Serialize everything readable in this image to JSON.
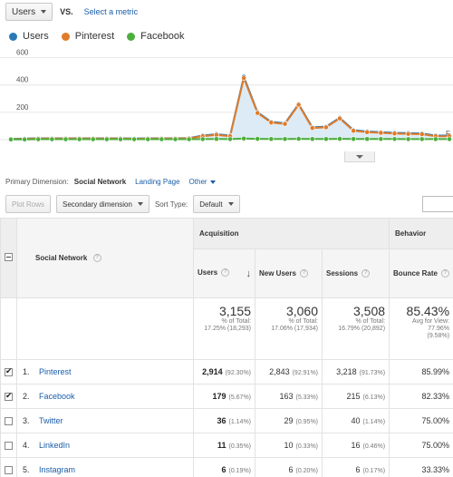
{
  "metric_row": {
    "metric": "Users",
    "vs": "VS.",
    "select_metric": "Select a metric"
  },
  "legend": [
    {
      "label": "Users",
      "color": "#2a7ab8"
    },
    {
      "label": "Pinterest",
      "color": "#e07b2a"
    },
    {
      "label": "Facebook",
      "color": "#4caf3c"
    }
  ],
  "chart_data": {
    "type": "line",
    "y_ticks": [
      "600",
      "400",
      "200"
    ],
    "ylim": [
      0,
      650
    ],
    "x_edge_label": "F",
    "series": [
      {
        "name": "Users",
        "color": "#2a7ab8",
        "values": [
          5,
          8,
          10,
          10,
          10,
          10,
          10,
          10,
          10,
          8,
          10,
          10,
          10,
          12,
          30,
          40,
          30,
          460,
          200,
          130,
          120,
          260,
          90,
          95,
          160,
          70,
          60,
          55,
          50,
          48,
          45,
          30,
          30
        ]
      },
      {
        "name": "Pinterest",
        "color": "#e07b2a",
        "values": [
          3,
          6,
          8,
          8,
          8,
          8,
          8,
          8,
          8,
          6,
          8,
          8,
          8,
          10,
          25,
          35,
          25,
          450,
          195,
          125,
          115,
          255,
          85,
          90,
          155,
          65,
          55,
          50,
          45,
          42,
          40,
          25,
          25
        ]
      },
      {
        "name": "Facebook",
        "color": "#4caf3c",
        "values": [
          2,
          2,
          3,
          3,
          3,
          3,
          3,
          3,
          3,
          3,
          3,
          3,
          3,
          3,
          4,
          5,
          4,
          8,
          6,
          5,
          5,
          6,
          5,
          5,
          6,
          5,
          5,
          5,
          5,
          4,
          4,
          4,
          4
        ]
      }
    ]
  },
  "primary_dimension": {
    "label": "Primary Dimension:",
    "active": "Social Network",
    "landing": "Landing Page",
    "other": "Other"
  },
  "toolbar": {
    "plot_rows": "Plot Rows",
    "secondary": "Secondary dimension",
    "sort_type_label": "Sort Type:",
    "sort_type": "Default"
  },
  "table": {
    "dimension_header": "Social Network",
    "acquisition": "Acquisition",
    "behavior": "Behavior",
    "columns": [
      "Users",
      "New Users",
      "Sessions",
      "Bounce Rate"
    ],
    "totals": [
      {
        "big": "3,155",
        "l1": "% of Total:",
        "l2": "17.25% (18,293)"
      },
      {
        "big": "3,060",
        "l1": "% of Total:",
        "l2": "17.06% (17,934)"
      },
      {
        "big": "3,508",
        "l1": "% of Total:",
        "l2": "16.79% (20,892)"
      },
      {
        "big": "85.43%",
        "l1": "Avg for View:",
        "l2": "77.96%",
        "l3": "(9.58%)"
      }
    ],
    "rows": [
      {
        "checked": true,
        "num": "1.",
        "name": "Pinterest",
        "users": "2,914",
        "users_pct": "(92.30%)",
        "new": "2,843",
        "new_pct": "(92.91%)",
        "sessions": "3,218",
        "sessions_pct": "(91.73%)",
        "bounce": "85.99%"
      },
      {
        "checked": true,
        "num": "2.",
        "name": "Facebook",
        "users": "179",
        "users_pct": "(5.67%)",
        "new": "163",
        "new_pct": "(5.33%)",
        "sessions": "215",
        "sessions_pct": "(6.13%)",
        "bounce": "82.33%"
      },
      {
        "checked": false,
        "num": "3.",
        "name": "Twitter",
        "users": "36",
        "users_pct": "(1.14%)",
        "new": "29",
        "new_pct": "(0.95%)",
        "sessions": "40",
        "sessions_pct": "(1.14%)",
        "bounce": "75.00%"
      },
      {
        "checked": false,
        "num": "4.",
        "name": "LinkedIn",
        "users": "11",
        "users_pct": "(0.35%)",
        "new": "10",
        "new_pct": "(0.33%)",
        "sessions": "16",
        "sessions_pct": "(0.46%)",
        "bounce": "75.00%"
      },
      {
        "checked": false,
        "num": "5.",
        "name": "Instagram",
        "users": "6",
        "users_pct": "(0.19%)",
        "new": "6",
        "new_pct": "(0.20%)",
        "sessions": "6",
        "sessions_pct": "(0.17%)",
        "bounce": "33.33%"
      }
    ]
  }
}
